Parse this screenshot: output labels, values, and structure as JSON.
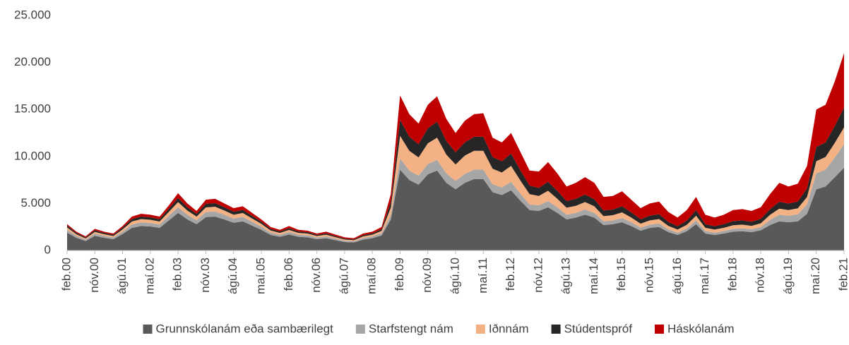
{
  "chart_data": {
    "type": "stacked_area",
    "categories": [
      "feb.00",
      null,
      null,
      "nóv.00",
      null,
      null,
      "ágú.01",
      null,
      null,
      "maí.02",
      null,
      null,
      "feb.03",
      null,
      null,
      "nóv.03",
      null,
      null,
      "ágú.04",
      null,
      null,
      "maí.05",
      null,
      null,
      "feb.06",
      null,
      null,
      "nóv.06",
      null,
      null,
      "ágú.07",
      null,
      null,
      "maí.08",
      null,
      null,
      "feb.09",
      null,
      null,
      "nóv.09",
      null,
      null,
      "ágú.10",
      null,
      null,
      "maí.11",
      null,
      null,
      "feb.12",
      null,
      null,
      "nóv.12",
      null,
      null,
      "ágú.13",
      null,
      null,
      "maí.14",
      null,
      null,
      "feb.15",
      null,
      null,
      "nóv.15",
      null,
      null,
      "ágú.16",
      null,
      null,
      "maí.17",
      null,
      null,
      "feb.18",
      null,
      null,
      "nóv.18",
      null,
      null,
      "ágú.19",
      null,
      null,
      "maí.20",
      null,
      null,
      "feb.21"
    ],
    "series": [
      {
        "name": "Grunnskólanám eða sambærilegt",
        "color": "#595959",
        "values": [
          1900,
          1350,
          1000,
          1550,
          1350,
          1200,
          1750,
          2400,
          2600,
          2550,
          2400,
          3200,
          4000,
          3300,
          2800,
          3550,
          3600,
          3300,
          2950,
          3100,
          2650,
          2200,
          1650,
          1450,
          1700,
          1450,
          1400,
          1200,
          1300,
          1100,
          900,
          850,
          1150,
          1300,
          1600,
          3300,
          8600,
          7500,
          7000,
          8100,
          8500,
          7200,
          6500,
          7200,
          7600,
          7600,
          6200,
          5900,
          6400,
          5300,
          4300,
          4200,
          4600,
          4000,
          3300,
          3500,
          3800,
          3500,
          2700,
          2800,
          3000,
          2600,
          2100,
          2400,
          2500,
          1950,
          1650,
          2050,
          2800,
          1800,
          1650,
          1800,
          2000,
          2050,
          1950,
          2150,
          2700,
          3100,
          3000,
          3100,
          3900,
          6500,
          6800,
          7800,
          8800
        ]
      },
      {
        "name": "Starfstengt nám",
        "color": "#a6a6a6",
        "values": [
          300,
          200,
          150,
          230,
          200,
          180,
          260,
          360,
          390,
          380,
          360,
          480,
          600,
          500,
          420,
          540,
          550,
          500,
          450,
          470,
          400,
          330,
          250,
          220,
          260,
          220,
          210,
          180,
          200,
          170,
          140,
          130,
          180,
          200,
          250,
          450,
          1200,
          1000,
          950,
          1100,
          1150,
          1000,
          900,
          950,
          1000,
          1000,
          850,
          800,
          900,
          750,
          600,
          600,
          650,
          600,
          500,
          500,
          550,
          500,
          400,
          400,
          450,
          400,
          330,
          350,
          370,
          300,
          250,
          300,
          400,
          270,
          250,
          270,
          300,
          310,
          300,
          330,
          550,
          700,
          700,
          750,
          1000,
          1700,
          1800,
          2100,
          2500
        ]
      },
      {
        "name": "Iðnnám",
        "color": "#f4b183",
        "values": [
          250,
          180,
          130,
          200,
          180,
          160,
          230,
          320,
          350,
          340,
          320,
          430,
          550,
          450,
          380,
          490,
          500,
          450,
          400,
          420,
          360,
          300,
          230,
          200,
          230,
          200,
          190,
          160,
          180,
          150,
          120,
          110,
          160,
          180,
          230,
          800,
          2400,
          2100,
          1950,
          2200,
          2350,
          2000,
          1750,
          1950,
          2000,
          2000,
          1650,
          1600,
          1700,
          1400,
          1100,
          1000,
          1100,
          900,
          750,
          750,
          800,
          700,
          550,
          550,
          600,
          500,
          420,
          450,
          470,
          370,
          320,
          380,
          500,
          340,
          320,
          340,
          380,
          390,
          370,
          410,
          540,
          650,
          600,
          640,
          800,
          1300,
          1350,
          1550,
          1800
        ]
      },
      {
        "name": "Stúdentspróf",
        "color": "#262626",
        "values": [
          200,
          140,
          110,
          160,
          140,
          130,
          180,
          250,
          270,
          260,
          250,
          330,
          430,
          350,
          290,
          380,
          380,
          350,
          320,
          330,
          280,
          230,
          170,
          150,
          180,
          150,
          150,
          120,
          140,
          120,
          100,
          90,
          130,
          140,
          180,
          600,
          1700,
          1500,
          1400,
          1600,
          1700,
          1450,
          1300,
          1400,
          1500,
          1500,
          1250,
          1200,
          1300,
          1100,
          900,
          850,
          950,
          850,
          700,
          750,
          800,
          750,
          600,
          600,
          650,
          550,
          470,
          500,
          530,
          420,
          360,
          440,
          600,
          390,
          360,
          390,
          440,
          450,
          430,
          470,
          600,
          730,
          690,
          720,
          900,
          1500,
          1550,
          1800,
          2100
        ]
      },
      {
        "name": "Háskólanám",
        "color": "#c00000",
        "values": [
          150,
          130,
          110,
          160,
          130,
          130,
          180,
          270,
          290,
          270,
          270,
          360,
          520,
          400,
          310,
          440,
          470,
          400,
          380,
          380,
          310,
          240,
          200,
          180,
          230,
          180,
          150,
          140,
          180,
          160,
          140,
          120,
          180,
          180,
          240,
          850,
          2600,
          2400,
          2200,
          2500,
          2700,
          2350,
          2050,
          2300,
          2400,
          2500,
          2050,
          2000,
          2200,
          1950,
          1600,
          1750,
          2100,
          1850,
          1550,
          1700,
          1850,
          1750,
          1450,
          1450,
          1600,
          1350,
          1180,
          1300,
          1330,
          1060,
          920,
          1130,
          1400,
          1000,
          920,
          1000,
          1180,
          1200,
          1150,
          1240,
          1610,
          2020,
          1810,
          1890,
          2400,
          4000,
          4000,
          4750,
          5800
        ]
      }
    ],
    "ylim": [
      0,
      25000
    ],
    "yticks": [
      0,
      {
        "value": 5000,
        "label": "5.000"
      },
      {
        "value": 10000,
        "label": "10.000"
      },
      {
        "value": 15000,
        "label": "15.000"
      },
      {
        "value": 20000,
        "label": "20.000"
      },
      {
        "value": 25000,
        "label": "25.000"
      }
    ],
    "legend": "bottom"
  }
}
